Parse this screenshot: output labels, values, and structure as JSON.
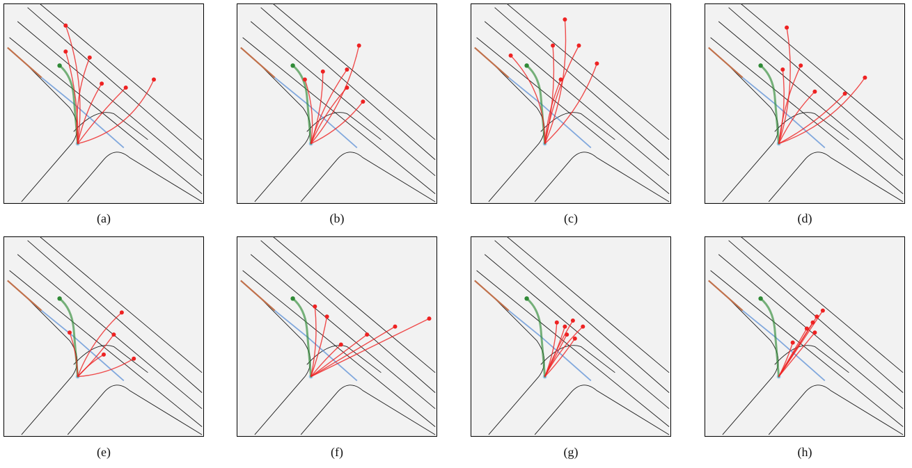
{
  "colors": {
    "frame": "#000000",
    "map_bg": "#f2f2f2",
    "lane": "#1a1a1a",
    "history": "#2f8a36",
    "ground_truth": "#5b8fd6",
    "past_track": "#c0704a",
    "prediction": "#ee2222",
    "agent": "#a9c9f0"
  },
  "panels": [
    {
      "label": "(a)",
      "predictions": [
        {
          "end": [
            0.31,
            0.11
          ],
          "bend": 0.03
        },
        {
          "end": [
            0.31,
            0.24
          ],
          "bend": 0.02
        },
        {
          "end": [
            0.43,
            0.27
          ],
          "bend": -0.03
        },
        {
          "end": [
            0.49,
            0.4
          ],
          "bend": -0.02
        },
        {
          "end": [
            0.61,
            0.42
          ],
          "bend": -0.01
        },
        {
          "end": [
            0.75,
            0.38
          ],
          "bend": 0.06
        }
      ]
    },
    {
      "label": "(b)",
      "predictions": [
        {
          "end": [
            0.34,
            0.38
          ],
          "bend": 0.03
        },
        {
          "end": [
            0.43,
            0.34
          ],
          "bend": 0.02
        },
        {
          "end": [
            0.55,
            0.33
          ],
          "bend": -0.02
        },
        {
          "end": [
            0.61,
            0.21
          ],
          "bend": 0.03
        },
        {
          "end": [
            0.55,
            0.42
          ],
          "bend": -0.02
        },
        {
          "end": [
            0.63,
            0.49
          ],
          "bend": 0.03
        }
      ]
    },
    {
      "label": "(c)",
      "predictions": [
        {
          "end": [
            0.2,
            0.26
          ],
          "bend": 0.05
        },
        {
          "end": [
            0.41,
            0.21
          ],
          "bend": 0.02
        },
        {
          "end": [
            0.47,
            0.08
          ],
          "bend": 0.03
        },
        {
          "end": [
            0.45,
            0.38
          ],
          "bend": -0.02
        },
        {
          "end": [
            0.54,
            0.21
          ],
          "bend": -0.02
        },
        {
          "end": [
            0.63,
            0.3
          ],
          "bend": 0.03
        }
      ]
    },
    {
      "label": "(d)",
      "predictions": [
        {
          "end": [
            0.39,
            0.33
          ],
          "bend": 0.02
        },
        {
          "end": [
            0.48,
            0.31
          ],
          "bend": -0.02
        },
        {
          "end": [
            0.41,
            0.12
          ],
          "bend": 0.03
        },
        {
          "end": [
            0.55,
            0.44
          ],
          "bend": -0.02
        },
        {
          "end": [
            0.7,
            0.45
          ],
          "bend": 0.02
        },
        {
          "end": [
            0.8,
            0.37
          ],
          "bend": 0.04
        }
      ]
    },
    {
      "label": "(e)",
      "predictions": [
        {
          "end": [
            0.33,
            0.48
          ],
          "bend": 0.02
        },
        {
          "end": [
            0.59,
            0.38
          ],
          "bend": -0.03
        },
        {
          "end": [
            0.5,
            0.59
          ],
          "bend": -0.02
        },
        {
          "end": [
            0.55,
            0.49
          ],
          "bend": 0.01
        },
        {
          "end": [
            0.65,
            0.61
          ],
          "bend": 0.03
        }
      ]
    },
    {
      "label": "(f)",
      "predictions": [
        {
          "end": [
            0.39,
            0.35
          ],
          "bend": 0.02
        },
        {
          "end": [
            0.45,
            0.4
          ],
          "bend": 0.01
        },
        {
          "end": [
            0.52,
            0.54
          ],
          "bend": -0.01
        },
        {
          "end": [
            0.65,
            0.49
          ],
          "bend": 0.0
        },
        {
          "end": [
            0.79,
            0.45
          ],
          "bend": 0.0
        },
        {
          "end": [
            0.96,
            0.41
          ],
          "bend": 0.0
        }
      ]
    },
    {
      "label": "(g)",
      "predictions": [
        {
          "end": [
            0.43,
            0.43
          ],
          "bend": 0.02
        },
        {
          "end": [
            0.47,
            0.45
          ],
          "bend": 0.01
        },
        {
          "end": [
            0.51,
            0.42
          ],
          "bend": -0.01
        },
        {
          "end": [
            0.48,
            0.49
          ],
          "bend": 0.0
        },
        {
          "end": [
            0.56,
            0.45
          ],
          "bend": -0.02
        },
        {
          "end": [
            0.52,
            0.51
          ],
          "bend": 0.01
        }
      ]
    },
    {
      "label": "(h)",
      "predictions": [
        {
          "end": [
            0.44,
            0.53
          ],
          "bend": 0.01
        },
        {
          "end": [
            0.51,
            0.46
          ],
          "bend": 0.0
        },
        {
          "end": [
            0.54,
            0.43
          ],
          "bend": 0.0
        },
        {
          "end": [
            0.56,
            0.4
          ],
          "bend": 0.0
        },
        {
          "end": [
            0.59,
            0.37
          ],
          "bend": 0.0
        },
        {
          "end": [
            0.55,
            0.48
          ],
          "bend": 0.0
        }
      ]
    }
  ]
}
